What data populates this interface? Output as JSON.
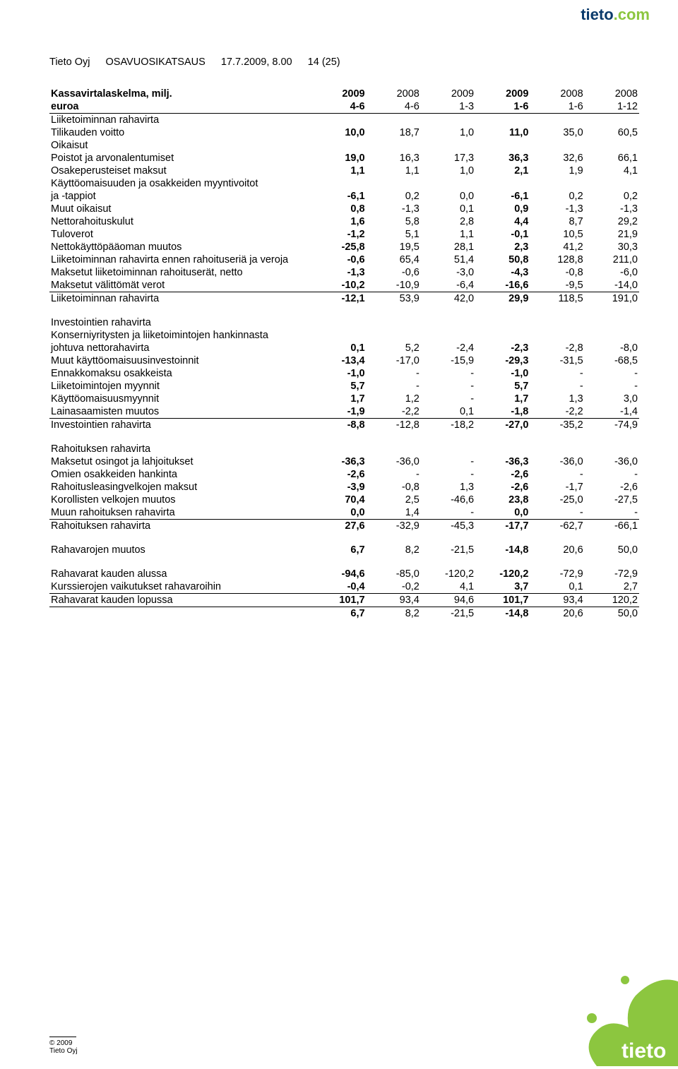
{
  "brand": {
    "part1": "tieto",
    "part2": ".com"
  },
  "header": {
    "company": "Tieto Oyj",
    "doc_type": "OSAVUOSIKATSAUS",
    "date_time": "17.7.2009, 8.00",
    "page": "14 (25)"
  },
  "title": "Kassavirtalaskelma, milj. euroa",
  "col_years": [
    "2009",
    "2008",
    "2009",
    "2009",
    "2008",
    "2008"
  ],
  "col_periods": [
    "4-6",
    "4-6",
    "1-3",
    "1-6",
    "1-6",
    "1-12"
  ],
  "rows": [
    {
      "lbl": "Liiketoiminnan rahavirta",
      "vals": [
        "",
        "",
        "",
        "",
        "",
        ""
      ],
      "indent": 0,
      "bold": false
    },
    {
      "lbl": "Tilikauden voitto",
      "vals": [
        "10,0",
        "18,7",
        "1,0",
        "11,0",
        "35,0",
        "60,5"
      ],
      "indent": 1,
      "bold": false,
      "boldcol": true
    },
    {
      "lbl": "Oikaisut",
      "vals": [
        "",
        "",
        "",
        "",
        "",
        ""
      ],
      "indent": 1,
      "bold": false
    },
    {
      "lbl": "Poistot ja arvonalentumiset",
      "vals": [
        "19,0",
        "16,3",
        "17,3",
        "36,3",
        "32,6",
        "66,1"
      ],
      "indent": 2,
      "bold": false,
      "boldcol": true
    },
    {
      "lbl": "Osakeperusteiset maksut",
      "vals": [
        "1,1",
        "1,1",
        "1,0",
        "2,1",
        "1,9",
        "4,1"
      ],
      "indent": 2,
      "bold": false,
      "boldcol": true
    },
    {
      "lbl": "Käyttöomaisuuden ja osakkeiden myyntivoitot",
      "vals": [
        "",
        "",
        "",
        "",
        "",
        ""
      ],
      "indent": 2,
      "bold": false
    },
    {
      "lbl": "ja -tappiot",
      "vals": [
        "-6,1",
        "0,2",
        "0,0",
        "-6,1",
        "0,2",
        "0,2"
      ],
      "indent": 2,
      "bold": false,
      "boldcol": true
    },
    {
      "lbl": "Muut oikaisut",
      "vals": [
        "0,8",
        "-1,3",
        "0,1",
        "0,9",
        "-1,3",
        "-1,3"
      ],
      "indent": 2,
      "bold": false,
      "boldcol": true
    },
    {
      "lbl": "Nettorahoituskulut",
      "vals": [
        "1,6",
        "5,8",
        "2,8",
        "4,4",
        "8,7",
        "29,2"
      ],
      "indent": 2,
      "bold": false,
      "boldcol": true
    },
    {
      "lbl": "Tuloverot",
      "vals": [
        "-1,2",
        "5,1",
        "1,1",
        "-0,1",
        "10,5",
        "21,9"
      ],
      "indent": 2,
      "bold": false,
      "boldcol": true
    },
    {
      "lbl": "Nettokäyttöpääoman muutos",
      "vals": [
        "-25,8",
        "19,5",
        "28,1",
        "2,3",
        "41,2",
        "30,3"
      ],
      "indent": 0,
      "bold": false,
      "boldcol": true
    },
    {
      "lbl": "Liiketoiminnan rahavirta ennen rahoituseriä ja veroja",
      "vals": [
        "-0,6",
        "65,4",
        "51,4",
        "50,8",
        "128,8",
        "211,0"
      ],
      "indent": 0,
      "bold": false,
      "boldcol": true
    },
    {
      "lbl": "Maksetut liiketoiminnan rahoituserät, netto",
      "vals": [
        "-1,3",
        "-0,6",
        "-3,0",
        "-4,3",
        "-0,8",
        "-6,0"
      ],
      "indent": 0,
      "bold": false,
      "boldcol": true
    },
    {
      "lbl": "Maksetut välittömät verot",
      "vals": [
        "-10,2",
        "-10,9",
        "-6,4",
        "-16,6",
        "-9,5",
        "-14,0"
      ],
      "indent": 0,
      "bold": false,
      "underline": true,
      "boldcol": true
    },
    {
      "lbl": "Liiketoiminnan rahavirta",
      "vals": [
        "-12,1",
        "53,9",
        "42,0",
        "29,9",
        "118,5",
        "191,0"
      ],
      "indent": 0,
      "bold": false,
      "boldcol": true
    },
    {
      "spacer": true
    },
    {
      "lbl": "Investointien rahavirta",
      "vals": [
        "",
        "",
        "",
        "",
        "",
        ""
      ],
      "indent": 0,
      "bold": false
    },
    {
      "lbl": "Konserniyritysten ja liiketoimintojen hankinnasta",
      "vals": [
        "",
        "",
        "",
        "",
        "",
        ""
      ],
      "indent": 1,
      "bold": false
    },
    {
      "lbl": "johtuva nettorahavirta",
      "vals": [
        "0,1",
        "5,2",
        "-2,4",
        "-2,3",
        "-2,8",
        "-8,0"
      ],
      "indent": 1,
      "bold": false,
      "boldcol": true
    },
    {
      "lbl": "Muut käyttöomaisuusinvestoinnit",
      "vals": [
        "-13,4",
        "-17,0",
        "-15,9",
        "-29,3",
        "-31,5",
        "-68,5"
      ],
      "indent": 1,
      "bold": false,
      "boldcol": true
    },
    {
      "lbl": "Ennakkomaksu osakkeista",
      "vals": [
        "-1,0",
        "-",
        "-",
        "-1,0",
        "-",
        "-"
      ],
      "indent": 1,
      "bold": false,
      "boldcol": true
    },
    {
      "lbl": "Liiketoimintojen myynnit",
      "vals": [
        "5,7",
        "-",
        "-",
        "5,7",
        "-",
        "-"
      ],
      "indent": 1,
      "bold": false,
      "boldcol": true
    },
    {
      "lbl": "Käyttöomaisuusmyynnit",
      "vals": [
        "1,7",
        "1,2",
        "-",
        "1,7",
        "1,3",
        "3,0"
      ],
      "indent": 1,
      "bold": false,
      "boldcol": true
    },
    {
      "lbl": "Lainasaamisten muutos",
      "vals": [
        "-1,9",
        "-2,2",
        "0,1",
        "-1,8",
        "-2,2",
        "-1,4"
      ],
      "indent": 1,
      "bold": false,
      "underline": true,
      "boldcol": true
    },
    {
      "lbl": "Investointien rahavirta",
      "vals": [
        "-8,8",
        "-12,8",
        "-18,2",
        "-27,0",
        "-35,2",
        "-74,9"
      ],
      "indent": 0,
      "bold": false,
      "boldcol": true
    },
    {
      "spacer": true
    },
    {
      "lbl": "Rahoituksen rahavirta",
      "vals": [
        "",
        "",
        "",
        "",
        "",
        ""
      ],
      "indent": 0,
      "bold": false
    },
    {
      "lbl": "Maksetut osingot ja lahjoitukset",
      "vals": [
        "-36,3",
        "-36,0",
        "-",
        "-36,3",
        "-36,0",
        "-36,0"
      ],
      "indent": 1,
      "bold": false,
      "boldcol": true
    },
    {
      "lbl": "Omien osakkeiden hankinta",
      "vals": [
        "-2,6",
        "-",
        "-",
        "-2,6",
        "-",
        "-"
      ],
      "indent": 1,
      "bold": false,
      "boldcol": true
    },
    {
      "lbl": "Rahoitusleasingvelkojen maksut",
      "vals": [
        "-3,9",
        "-0,8",
        "1,3",
        "-2,6",
        "-1,7",
        "-2,6"
      ],
      "indent": 1,
      "bold": false,
      "boldcol": true
    },
    {
      "lbl": "Korollisten velkojen muutos",
      "vals": [
        "70,4",
        "2,5",
        "-46,6",
        "23,8",
        "-25,0",
        "-27,5"
      ],
      "indent": 1,
      "bold": false,
      "boldcol": true
    },
    {
      "lbl": "Muun rahoituksen rahavirta",
      "vals": [
        "0,0",
        "1,4",
        "-",
        "0,0",
        "-",
        "-"
      ],
      "indent": 1,
      "bold": false,
      "underline": true,
      "boldcol": true
    },
    {
      "lbl": "Rahoituksen rahavirta",
      "vals": [
        "27,6",
        "-32,9",
        "-45,3",
        "-17,7",
        "-62,7",
        "-66,1"
      ],
      "indent": 0,
      "bold": false,
      "boldcol": true
    },
    {
      "spacer": true
    },
    {
      "lbl": "Rahavarojen muutos",
      "vals": [
        "6,7",
        "8,2",
        "-21,5",
        "-14,8",
        "20,6",
        "50,0"
      ],
      "indent": 0,
      "bold": false,
      "boldcol": true
    },
    {
      "spacer": true
    },
    {
      "lbl": "Rahavarat kauden alussa",
      "vals": [
        "-94,6",
        "-85,0",
        "-120,2",
        "-120,2",
        "-72,9",
        "-72,9"
      ],
      "indent": 0,
      "bold": false,
      "boldcol": true
    },
    {
      "lbl": "Kurssierojen vaikutukset rahavaroihin",
      "vals": [
        "-0,4",
        "-0,2",
        "4,1",
        "3,7",
        "0,1",
        "2,7"
      ],
      "indent": 0,
      "bold": false,
      "underline": true,
      "boldcol": true
    },
    {
      "lbl": "Rahavarat kauden lopussa",
      "vals": [
        "101,7",
        "93,4",
        "94,6",
        "101,7",
        "93,4",
        "120,2"
      ],
      "indent": 0,
      "bold": false,
      "underline": true,
      "boldcol": true
    },
    {
      "lbl": "",
      "vals": [
        "6,7",
        "8,2",
        "-21,5",
        "-14,8",
        "20,6",
        "50,0"
      ],
      "indent": 0,
      "bold": false,
      "boldcol": true
    }
  ],
  "footer": {
    "copyright": "© 2009",
    "company": "Tieto Oyj"
  },
  "colors": {
    "brand_dark": "#0a3a6b",
    "brand_green": "#8cc63f"
  }
}
